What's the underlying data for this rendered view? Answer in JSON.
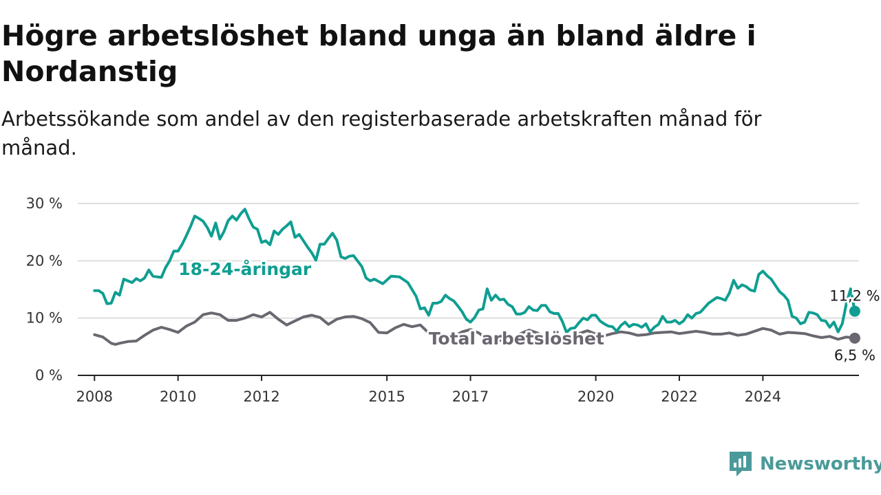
{
  "title": "Högre arbetslöshet bland unga än bland äldre i Nordanstig",
  "subtitle": "Arbetssökande som andel av den registerbaserade arbetskraften månad för månad.",
  "brand": {
    "name": "Newsworthy",
    "icon": "newsworthy-logo-icon"
  },
  "colors": {
    "youth": "#0f9e91",
    "total": "#6b6770",
    "grid": "#dddddd",
    "axis": "#222222"
  },
  "chart_data": {
    "type": "line",
    "title": "Högre arbetslöshet bland unga än bland äldre i Nordanstig",
    "xlabel": "",
    "ylabel": "",
    "xlim": [
      2007.6,
      2026.3
    ],
    "ylim": [
      0,
      30
    ],
    "grid": true,
    "y_ticks": [
      {
        "value": 0,
        "label": "0 %"
      },
      {
        "value": 10,
        "label": "10 %"
      },
      {
        "value": 20,
        "label": "20 %"
      },
      {
        "value": 30,
        "label": "30 %"
      }
    ],
    "x_ticks": [
      {
        "value": 2008,
        "label": "2008"
      },
      {
        "value": 2010,
        "label": "2010"
      },
      {
        "value": 2012,
        "label": "2012"
      },
      {
        "value": 2015,
        "label": "2015"
      },
      {
        "value": 2017,
        "label": "2017"
      },
      {
        "value": 2020,
        "label": "2020"
      },
      {
        "value": 2022,
        "label": "2022"
      },
      {
        "value": 2024,
        "label": "2024"
      }
    ],
    "series": [
      {
        "name": "18-24-åringar",
        "end_label": "11,2 %",
        "points": [
          [
            2008.0,
            14.8
          ],
          [
            2008.1,
            14.8
          ],
          [
            2008.2,
            14.3
          ],
          [
            2008.3,
            12.5
          ],
          [
            2008.4,
            12.6
          ],
          [
            2008.5,
            14.5
          ],
          [
            2008.6,
            14.0
          ],
          [
            2008.7,
            16.8
          ],
          [
            2008.8,
            16.5
          ],
          [
            2008.9,
            16.2
          ],
          [
            2009.0,
            16.9
          ],
          [
            2009.1,
            16.5
          ],
          [
            2009.2,
            17.0
          ],
          [
            2009.3,
            18.4
          ],
          [
            2009.4,
            17.3
          ],
          [
            2009.5,
            17.2
          ],
          [
            2009.6,
            17.1
          ],
          [
            2009.7,
            18.8
          ],
          [
            2009.8,
            20.0
          ],
          [
            2009.9,
            21.7
          ],
          [
            2010.0,
            21.7
          ],
          [
            2010.1,
            22.9
          ],
          [
            2010.2,
            24.4
          ],
          [
            2010.3,
            26.0
          ],
          [
            2010.4,
            27.8
          ],
          [
            2010.5,
            27.4
          ],
          [
            2010.6,
            26.9
          ],
          [
            2010.7,
            25.8
          ],
          [
            2010.8,
            24.3
          ],
          [
            2010.9,
            26.6
          ],
          [
            2011.0,
            23.8
          ],
          [
            2011.1,
            25.1
          ],
          [
            2011.2,
            27.0
          ],
          [
            2011.3,
            27.8
          ],
          [
            2011.4,
            27.1
          ],
          [
            2011.5,
            28.2
          ],
          [
            2011.6,
            29.0
          ],
          [
            2011.7,
            27.3
          ],
          [
            2011.8,
            25.9
          ],
          [
            2011.9,
            25.5
          ],
          [
            2012.0,
            23.2
          ],
          [
            2012.1,
            23.5
          ],
          [
            2012.2,
            22.8
          ],
          [
            2012.3,
            25.2
          ],
          [
            2012.4,
            24.6
          ],
          [
            2012.5,
            25.5
          ],
          [
            2012.6,
            26.1
          ],
          [
            2012.7,
            26.8
          ],
          [
            2012.8,
            24.1
          ],
          [
            2012.9,
            24.6
          ],
          [
            2013.0,
            23.5
          ],
          [
            2013.1,
            22.4
          ],
          [
            2013.2,
            21.4
          ],
          [
            2013.3,
            20.1
          ],
          [
            2013.4,
            22.9
          ],
          [
            2013.5,
            22.9
          ],
          [
            2013.6,
            23.9
          ],
          [
            2013.7,
            24.8
          ],
          [
            2013.8,
            23.6
          ],
          [
            2013.9,
            20.7
          ],
          [
            2014.0,
            20.4
          ],
          [
            2014.1,
            20.8
          ],
          [
            2014.2,
            20.9
          ],
          [
            2014.4,
            19.0
          ],
          [
            2014.5,
            17.0
          ],
          [
            2014.6,
            16.5
          ],
          [
            2014.7,
            16.8
          ],
          [
            2014.9,
            16.0
          ],
          [
            2015.1,
            17.3
          ],
          [
            2015.3,
            17.2
          ],
          [
            2015.5,
            16.2
          ],
          [
            2015.7,
            13.8
          ],
          [
            2015.8,
            11.6
          ],
          [
            2015.9,
            11.8
          ],
          [
            2016.0,
            10.5
          ],
          [
            2016.1,
            12.6
          ],
          [
            2016.2,
            12.6
          ],
          [
            2016.3,
            12.9
          ],
          [
            2016.4,
            14.0
          ],
          [
            2016.5,
            13.4
          ],
          [
            2016.6,
            13.0
          ],
          [
            2016.7,
            12.1
          ],
          [
            2016.8,
            11.1
          ],
          [
            2016.9,
            9.8
          ],
          [
            2017.0,
            9.3
          ],
          [
            2017.1,
            10.1
          ],
          [
            2017.2,
            11.4
          ],
          [
            2017.3,
            11.6
          ],
          [
            2017.4,
            15.1
          ],
          [
            2017.5,
            13.1
          ],
          [
            2017.6,
            14.0
          ],
          [
            2017.7,
            13.2
          ],
          [
            2017.8,
            13.3
          ],
          [
            2017.9,
            12.4
          ],
          [
            2018.0,
            12.0
          ],
          [
            2018.1,
            10.7
          ],
          [
            2018.2,
            10.7
          ],
          [
            2018.3,
            11.0
          ],
          [
            2018.4,
            12.0
          ],
          [
            2018.5,
            11.4
          ],
          [
            2018.6,
            11.3
          ],
          [
            2018.7,
            12.2
          ],
          [
            2018.8,
            12.2
          ],
          [
            2018.9,
            11.1
          ],
          [
            2019.0,
            10.8
          ],
          [
            2019.1,
            10.8
          ],
          [
            2019.2,
            9.4
          ],
          [
            2019.3,
            7.5
          ],
          [
            2019.4,
            8.2
          ],
          [
            2019.5,
            8.3
          ],
          [
            2019.6,
            9.2
          ],
          [
            2019.7,
            10.0
          ],
          [
            2019.8,
            9.7
          ],
          [
            2019.9,
            10.5
          ],
          [
            2020.0,
            10.5
          ],
          [
            2020.1,
            9.5
          ],
          [
            2020.2,
            9.0
          ],
          [
            2020.3,
            8.6
          ],
          [
            2020.4,
            8.5
          ],
          [
            2020.5,
            7.7
          ],
          [
            2020.6,
            8.7
          ],
          [
            2020.7,
            9.3
          ],
          [
            2020.8,
            8.5
          ],
          [
            2020.9,
            8.9
          ],
          [
            2021.0,
            8.8
          ],
          [
            2021.1,
            8.4
          ],
          [
            2021.2,
            9.0
          ],
          [
            2021.3,
            7.6
          ],
          [
            2021.4,
            8.4
          ],
          [
            2021.5,
            8.9
          ],
          [
            2021.6,
            10.3
          ],
          [
            2021.7,
            9.3
          ],
          [
            2021.8,
            9.3
          ],
          [
            2021.9,
            9.6
          ],
          [
            2022.0,
            9.0
          ],
          [
            2022.1,
            9.5
          ],
          [
            2022.2,
            10.6
          ],
          [
            2022.3,
            10.0
          ],
          [
            2022.4,
            10.8
          ],
          [
            2022.5,
            11.0
          ],
          [
            2022.6,
            11.8
          ],
          [
            2022.7,
            12.6
          ],
          [
            2022.8,
            13.1
          ],
          [
            2022.9,
            13.6
          ],
          [
            2023.0,
            13.4
          ],
          [
            2023.1,
            13.1
          ],
          [
            2023.2,
            14.4
          ],
          [
            2023.3,
            16.6
          ],
          [
            2023.4,
            15.2
          ],
          [
            2023.5,
            15.8
          ],
          [
            2023.6,
            15.5
          ],
          [
            2023.7,
            14.9
          ],
          [
            2023.8,
            14.7
          ],
          [
            2023.9,
            17.6
          ],
          [
            2024.0,
            18.2
          ],
          [
            2024.1,
            17.4
          ],
          [
            2024.2,
            16.8
          ],
          [
            2024.3,
            15.7
          ],
          [
            2024.4,
            14.6
          ],
          [
            2024.5,
            14.0
          ],
          [
            2024.6,
            13.1
          ],
          [
            2024.7,
            10.3
          ],
          [
            2024.8,
            10.0
          ],
          [
            2024.9,
            9.0
          ],
          [
            2025.0,
            9.3
          ],
          [
            2025.1,
            11.0
          ],
          [
            2025.2,
            10.9
          ],
          [
            2025.3,
            10.6
          ],
          [
            2025.4,
            9.6
          ],
          [
            2025.5,
            9.5
          ],
          [
            2025.6,
            8.4
          ],
          [
            2025.7,
            9.3
          ],
          [
            2025.8,
            7.6
          ],
          [
            2025.9,
            9.0
          ],
          [
            2026.0,
            12.6
          ],
          [
            2026.1,
            15.1
          ],
          [
            2026.2,
            11.2
          ]
        ]
      },
      {
        "name": "Total arbetslöshet",
        "end_label": "6,5 %",
        "points": [
          [
            2008.0,
            7.1
          ],
          [
            2008.2,
            6.7
          ],
          [
            2008.4,
            5.6
          ],
          [
            2008.5,
            5.4
          ],
          [
            2008.6,
            5.6
          ],
          [
            2008.8,
            5.9
          ],
          [
            2009.0,
            6.0
          ],
          [
            2009.2,
            7.0
          ],
          [
            2009.4,
            7.9
          ],
          [
            2009.6,
            8.4
          ],
          [
            2009.8,
            8.0
          ],
          [
            2010.0,
            7.5
          ],
          [
            2010.2,
            8.6
          ],
          [
            2010.4,
            9.3
          ],
          [
            2010.6,
            10.6
          ],
          [
            2010.8,
            10.9
          ],
          [
            2011.0,
            10.6
          ],
          [
            2011.2,
            9.6
          ],
          [
            2011.4,
            9.6
          ],
          [
            2011.6,
            10.0
          ],
          [
            2011.8,
            10.6
          ],
          [
            2012.0,
            10.2
          ],
          [
            2012.2,
            11.0
          ],
          [
            2012.4,
            9.8
          ],
          [
            2012.6,
            8.8
          ],
          [
            2012.8,
            9.5
          ],
          [
            2013.0,
            10.2
          ],
          [
            2013.2,
            10.5
          ],
          [
            2013.4,
            10.1
          ],
          [
            2013.6,
            8.9
          ],
          [
            2013.8,
            9.8
          ],
          [
            2014.0,
            10.2
          ],
          [
            2014.2,
            10.3
          ],
          [
            2014.4,
            9.9
          ],
          [
            2014.6,
            9.2
          ],
          [
            2014.8,
            7.5
          ],
          [
            2015.0,
            7.4
          ],
          [
            2015.2,
            8.3
          ],
          [
            2015.4,
            8.9
          ],
          [
            2015.6,
            8.5
          ],
          [
            2015.8,
            8.8
          ],
          [
            2016.0,
            7.4
          ],
          [
            2016.2,
            6.5
          ],
          [
            2016.4,
            6.3
          ],
          [
            2016.6,
            6.8
          ],
          [
            2016.8,
            7.6
          ],
          [
            2017.0,
            8.0
          ],
          [
            2017.2,
            7.4
          ],
          [
            2017.4,
            6.3
          ],
          [
            2017.6,
            6.0
          ],
          [
            2017.8,
            6.2
          ],
          [
            2018.0,
            6.4
          ],
          [
            2018.2,
            7.3
          ],
          [
            2018.4,
            7.9
          ],
          [
            2018.6,
            7.4
          ],
          [
            2018.8,
            6.6
          ],
          [
            2019.0,
            6.3
          ],
          [
            2019.2,
            6.7
          ],
          [
            2019.4,
            6.9
          ],
          [
            2019.6,
            7.3
          ],
          [
            2019.8,
            7.8
          ],
          [
            2020.0,
            7.2
          ],
          [
            2020.2,
            6.9
          ],
          [
            2020.4,
            7.3
          ],
          [
            2020.6,
            7.6
          ],
          [
            2020.8,
            7.4
          ],
          [
            2021.0,
            7.0
          ],
          [
            2021.2,
            7.1
          ],
          [
            2021.4,
            7.4
          ],
          [
            2021.6,
            7.5
          ],
          [
            2021.8,
            7.6
          ],
          [
            2022.0,
            7.3
          ],
          [
            2022.2,
            7.5
          ],
          [
            2022.4,
            7.7
          ],
          [
            2022.6,
            7.5
          ],
          [
            2022.8,
            7.2
          ],
          [
            2023.0,
            7.2
          ],
          [
            2023.2,
            7.4
          ],
          [
            2023.4,
            7.0
          ],
          [
            2023.6,
            7.2
          ],
          [
            2023.8,
            7.7
          ],
          [
            2024.0,
            8.2
          ],
          [
            2024.2,
            7.9
          ],
          [
            2024.4,
            7.2
          ],
          [
            2024.6,
            7.5
          ],
          [
            2024.8,
            7.4
          ],
          [
            2025.0,
            7.3
          ],
          [
            2025.2,
            6.9
          ],
          [
            2025.4,
            6.6
          ],
          [
            2025.6,
            6.8
          ],
          [
            2025.8,
            6.3
          ],
          [
            2026.0,
            6.7
          ],
          [
            2026.2,
            6.5
          ]
        ]
      }
    ]
  }
}
